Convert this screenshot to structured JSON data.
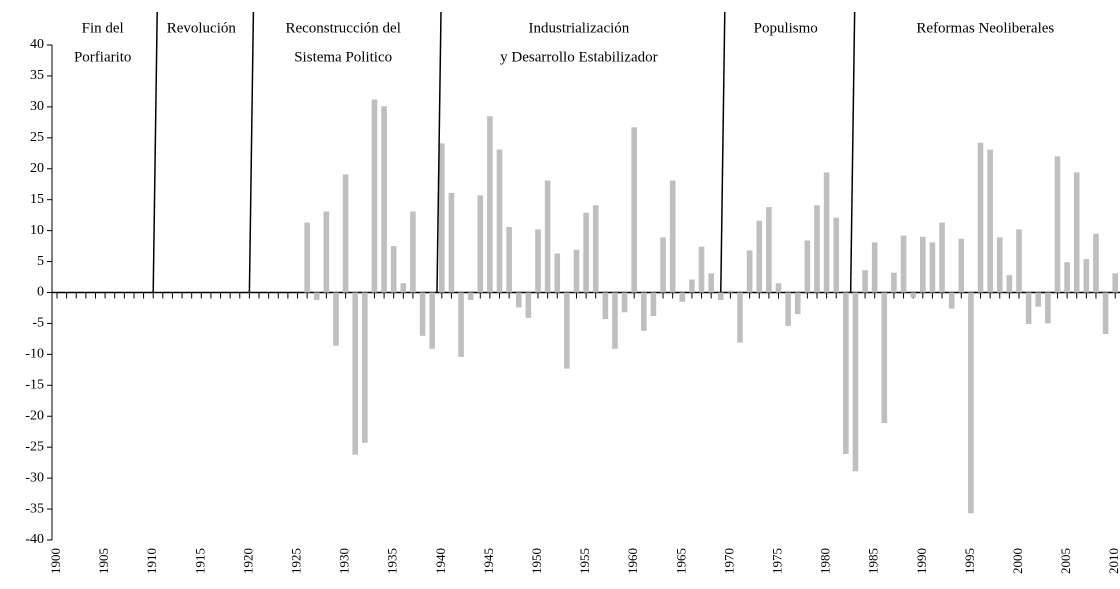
{
  "chart_data": {
    "type": "bar",
    "categories": [
      1900,
      null,
      null,
      null,
      null,
      1905,
      null,
      null,
      null,
      null,
      1910,
      null,
      null,
      null,
      null,
      1915,
      null,
      null,
      null,
      null,
      1920,
      null,
      null,
      null,
      null,
      1925,
      null,
      null,
      null,
      null,
      1930,
      null,
      null,
      null,
      null,
      1935,
      null,
      null,
      null,
      null,
      1940,
      null,
      null,
      null,
      null,
      1945,
      null,
      null,
      null,
      null,
      1950,
      null,
      null,
      null,
      null,
      1955,
      null,
      null,
      null,
      null,
      1960,
      null,
      null,
      null,
      null,
      1965,
      null,
      null,
      null,
      null,
      1970,
      null,
      null,
      null,
      null,
      1975,
      null,
      null,
      null,
      null,
      1980,
      null,
      null,
      null,
      null,
      1985,
      null,
      null,
      null,
      null,
      1990,
      null,
      null,
      null,
      null,
      1995,
      null,
      null,
      null,
      null,
      2000,
      null,
      null,
      null,
      null,
      2005,
      null,
      null,
      null,
      null,
      2010
    ],
    "values": [
      null,
      null,
      null,
      null,
      null,
      null,
      null,
      null,
      null,
      null,
      null,
      null,
      null,
      null,
      null,
      null,
      null,
      null,
      null,
      null,
      null,
      null,
      null,
      null,
      null,
      null,
      11.3,
      -1.2,
      13.1,
      -8.6,
      19.1,
      -26.2,
      -24.3,
      31.2,
      30.1,
      7.5,
      1.5,
      13.1,
      -7,
      -9.1,
      24.1,
      16.1,
      -10.4,
      -1.2,
      15.7,
      28.5,
      23.1,
      10.6,
      -2.4,
      -4.1,
      10.2,
      18.1,
      6.3,
      -12.3,
      6.9,
      12.9,
      14.1,
      -4.3,
      -9.1,
      -3.2,
      26.7,
      -6.2,
      -3.8,
      8.9,
      18.1,
      -1.5,
      2.1,
      7.4,
      3.1,
      -1.2,
      0.3,
      -8.1,
      6.8,
      11.6,
      13.8,
      1.5,
      -5.4,
      -3.5,
      8.4,
      14.1,
      19.4,
      12.1,
      -26.1,
      -28.9,
      3.6,
      8.1,
      -21.1,
      3.2,
      9.2,
      -0.8,
      9.0,
      8.1,
      11.3,
      -2.6,
      8.7,
      -35.7,
      24.2,
      23.1,
      8.9,
      2.8,
      10.2,
      -5.1,
      -2.3,
      -5.0,
      22.0,
      4.9,
      19.4,
      5.4,
      9.5,
      -6.7,
      3.1
    ],
    "color": "#bfbfbf",
    "ylim": [
      -40,
      40
    ],
    "yticks": [
      -40,
      -35,
      -30,
      -25,
      -20,
      -15,
      -10,
      -5,
      0,
      5,
      10,
      15,
      20,
      25,
      30,
      35,
      40
    ],
    "periods": [
      {
        "label": [
          "Fin del",
          "Porfiarito"
        ]
      },
      {
        "label": [
          "Revolución"
        ]
      },
      {
        "label": [
          "Reconstrucción del",
          "Sistema Politico"
        ]
      },
      {
        "label": [
          "Industrialización",
          "y Desarrollo Estabilizador"
        ]
      },
      {
        "label": [
          "Populismo"
        ]
      },
      {
        "label": [
          "Reformas Neoliberales"
        ]
      }
    ],
    "boundaries": [
      1910,
      1920,
      1939.5,
      1969,
      1982.5
    ]
  }
}
